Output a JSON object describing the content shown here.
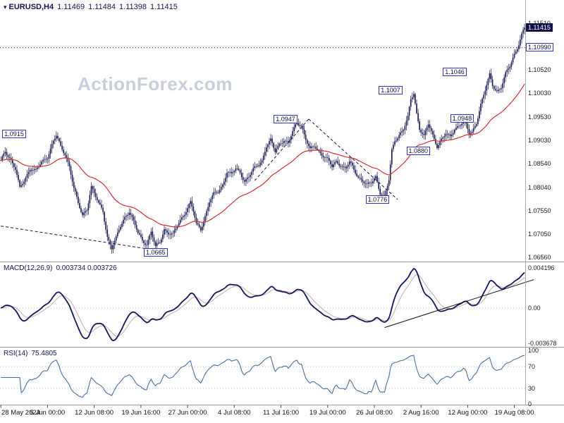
{
  "header": {
    "symbol": "EURUSD,H4",
    "open": "1.11469",
    "high": "1.11484",
    "low": "1.11398",
    "close": "1.11415"
  },
  "watermark": "ActionForex.com",
  "colors": {
    "candle": "#15154e",
    "ma": "#d63131",
    "macd": "#15155a",
    "signal": "#d2a8a8",
    "rsi": "#4a6fa8",
    "label_border": "#3535b5",
    "label_text": "#10104a",
    "badge_bg": "#10104a",
    "separator": "#999999",
    "axis_line": "#aaaaaa",
    "level_dotted": "#30306a",
    "grid_dotted": "#bbbbbb",
    "trendline": "#15154e",
    "macd_trend": "#111111"
  },
  "chart_data": {
    "type": "candlestick",
    "title": "EURUSD,H4",
    "bars_shown": 360,
    "price_panel": {
      "bars_total": 360,
      "last_close": 1.11415,
      "current_price_badge": "1.11415",
      "dotted_level": 1.1099,
      "ma": {
        "type": "EMA",
        "period": 50
      },
      "y_axis_labels": [
        {
          "text": "1.11510",
          "price": 1.1151
        },
        {
          "text": "1.10990",
          "price": 1.1099,
          "boxed": true
        },
        {
          "text": "1.10520",
          "price": 1.1052
        },
        {
          "text": "1.10030",
          "price": 1.1003
        },
        {
          "text": "1.09530",
          "price": 1.0953
        },
        {
          "text": "1.09030",
          "price": 1.0903
        },
        {
          "text": "1.08540",
          "price": 1.0854
        },
        {
          "text": "1.08040",
          "price": 1.0804
        },
        {
          "text": "1.07550",
          "price": 1.0755
        },
        {
          "text": "1.07050",
          "price": 1.0705
        },
        {
          "text": "1.06560",
          "price": 1.0656
        }
      ],
      "price_labels": [
        {
          "text": "1.0915",
          "bar": 1,
          "price": 1.0915
        },
        {
          "text": "1.0665",
          "bar": 98,
          "price": 1.0665
        },
        {
          "text": "1.0947",
          "bar": 187,
          "price": 1.0947
        },
        {
          "text": "1.0776",
          "bar": 250,
          "price": 1.0776
        },
        {
          "text": "1.0880",
          "bar": 278,
          "price": 1.088
        },
        {
          "text": "1.1007",
          "bar": 259,
          "price": 1.1007
        },
        {
          "text": "1.0948",
          "bar": 308,
          "price": 1.0948
        },
        {
          "text": "1.1046",
          "bar": 303,
          "price": 1.1046
        }
      ],
      "trendlines": [
        {
          "b1": 0,
          "p1": 1.0722,
          "b2": 112,
          "p2": 1.0668,
          "dashed": true
        },
        {
          "b1": 174,
          "p1": 1.0818,
          "b2": 211,
          "p2": 1.0948,
          "dashed": true
        },
        {
          "b1": 211,
          "p1": 1.0948,
          "b2": 272,
          "p2": 1.0778,
          "dashed": true
        }
      ],
      "anchors": [
        [
          0,
          1.0858
        ],
        [
          3,
          1.088
        ],
        [
          6,
          1.0868
        ],
        [
          10,
          1.0842
        ],
        [
          13,
          1.08
        ],
        [
          16,
          1.0818
        ],
        [
          20,
          1.0845
        ],
        [
          24,
          1.0838
        ],
        [
          28,
          1.0856
        ],
        [
          32,
          1.087
        ],
        [
          36,
          1.0902
        ],
        [
          38,
          1.0912
        ],
        [
          41,
          1.0888
        ],
        [
          44,
          1.0875
        ],
        [
          47,
          1.085
        ],
        [
          50,
          1.0802
        ],
        [
          53,
          1.0768
        ],
        [
          56,
          1.0744
        ],
        [
          59,
          1.076
        ],
        [
          62,
          1.0805
        ],
        [
          64,
          1.079
        ],
        [
          67,
          1.0768
        ],
        [
          70,
          1.0754
        ],
        [
          73,
          1.07
        ],
        [
          76,
          1.0675
        ],
        [
          79,
          1.0695
        ],
        [
          82,
          1.0722
        ],
        [
          85,
          1.0742
        ],
        [
          88,
          1.0754
        ],
        [
          91,
          1.073
        ],
        [
          94,
          1.0706
        ],
        [
          97,
          1.0692
        ],
        [
          100,
          1.0685
        ],
        [
          103,
          1.071
        ],
        [
          106,
          1.0676
        ],
        [
          109,
          1.0688
        ],
        [
          112,
          1.0716
        ],
        [
          115,
          1.0708
        ],
        [
          118,
          1.0702
        ],
        [
          121,
          1.0722
        ],
        [
          124,
          1.074
        ],
        [
          127,
          1.0756
        ],
        [
          130,
          1.0772
        ],
        [
          132,
          1.0752
        ],
        [
          134,
          1.0724
        ],
        [
          137,
          1.0716
        ],
        [
          140,
          1.0744
        ],
        [
          143,
          1.0774
        ],
        [
          146,
          1.0788
        ],
        [
          149,
          1.0794
        ],
        [
          152,
          1.081
        ],
        [
          155,
          1.0838
        ],
        [
          158,
          1.083
        ],
        [
          161,
          1.0842
        ],
        [
          164,
          1.0836
        ],
        [
          167,
          1.0818
        ],
        [
          170,
          1.0826
        ],
        [
          173,
          1.084
        ],
        [
          176,
          1.085
        ],
        [
          179,
          1.0862
        ],
        [
          182,
          1.0892
        ],
        [
          185,
          1.0902
        ],
        [
          188,
          1.0878
        ],
        [
          191,
          1.0896
        ],
        [
          194,
          1.0906
        ],
        [
          197,
          1.0896
        ],
        [
          200,
          1.092
        ],
        [
          203,
          1.094
        ],
        [
          206,
          1.0936
        ],
        [
          209,
          1.0906
        ],
        [
          212,
          1.0882
        ],
        [
          215,
          1.089
        ],
        [
          218,
          1.088
        ],
        [
          221,
          1.0872
        ],
        [
          224,
          1.0862
        ],
        [
          227,
          1.0846
        ],
        [
          230,
          1.0858
        ],
        [
          233,
          1.0852
        ],
        [
          236,
          1.0844
        ],
        [
          239,
          1.0856
        ],
        [
          242,
          1.084
        ],
        [
          245,
          1.0826
        ],
        [
          248,
          1.082
        ],
        [
          251,
          1.0808
        ],
        [
          254,
          1.0812
        ],
        [
          257,
          1.0826
        ],
        [
          260,
          1.0794
        ],
        [
          263,
          1.0784
        ],
        [
          266,
          1.0818
        ],
        [
          268,
          1.088
        ],
        [
          270,
          1.0902
        ],
        [
          273,
          1.0916
        ],
        [
          276,
          1.0928
        ],
        [
          279,
          1.095
        ],
        [
          281,
          1.0988
        ],
        [
          283,
          1.1002
        ],
        [
          285,
          1.096
        ],
        [
          287,
          1.093
        ],
        [
          290,
          1.0912
        ],
        [
          293,
          1.0936
        ],
        [
          296,
          1.0912
        ],
        [
          299,
          1.0892
        ],
        [
          302,
          1.0906
        ],
        [
          305,
          1.0916
        ],
        [
          308,
          1.0908
        ],
        [
          311,
          1.0928
        ],
        [
          314,
          1.0936
        ],
        [
          317,
          1.0944
        ],
        [
          319,
          1.0934
        ],
        [
          321,
          1.0916
        ],
        [
          323,
          1.092
        ],
        [
          326,
          1.0942
        ],
        [
          329,
          1.098
        ],
        [
          332,
          1.1008
        ],
        [
          335,
          1.104
        ],
        [
          337,
          1.102
        ],
        [
          340,
          1.1008
        ],
        [
          343,
          1.1016
        ],
        [
          346,
          1.1042
        ],
        [
          349,
          1.106
        ],
        [
          352,
          1.1086
        ],
        [
          355,
          1.1108
        ],
        [
          357,
          1.1126
        ],
        [
          359,
          1.1141
        ]
      ]
    },
    "macd_panel": {
      "label": "MACD(12,26,9)",
      "values": "0.003734 0.003726",
      "params": [
        12,
        26,
        9
      ],
      "axis_labels": [
        {
          "text": "0.004196",
          "value": 0.004196
        },
        {
          "text": "0.00",
          "value": 0
        },
        {
          "text": "-0.003678",
          "value": -0.003678
        }
      ],
      "trendline": {
        "b1": 263,
        "v1": -0.00202,
        "b2": 366,
        "v2": 0.00295
      }
    },
    "rsi_panel": {
      "label": "RSI(14)",
      "value": "75.4805",
      "period": 14,
      "axis_labels": [
        {
          "text": "100",
          "value": 100
        },
        {
          "text": "70",
          "value": 70
        },
        {
          "text": "30",
          "value": 30
        },
        {
          "text": "0",
          "value": 0
        }
      ],
      "levels": [
        70,
        30
      ]
    },
    "time_axis": {
      "labels": [
        {
          "text": "28 May 2024",
          "bar": 0,
          "align": "left"
        },
        {
          "text": "5 Jun 00:00",
          "bar": 32
        },
        {
          "text": "12 Jun 08:00",
          "bar": 64
        },
        {
          "text": "19 Jun 16:00",
          "bar": 96
        },
        {
          "text": "27 Jun 00:00",
          "bar": 128
        },
        {
          "text": "4 Jul 08:00",
          "bar": 160
        },
        {
          "text": "11 Jul 16:00",
          "bar": 192
        },
        {
          "text": "19 Jul 00:00",
          "bar": 224
        },
        {
          "text": "26 Jul 08:00",
          "bar": 256
        },
        {
          "text": "2 Aug 16:00",
          "bar": 288
        },
        {
          "text": "12 Aug 00:00",
          "bar": 320
        },
        {
          "text": "19 Aug 08:00",
          "bar": 352
        }
      ]
    }
  }
}
